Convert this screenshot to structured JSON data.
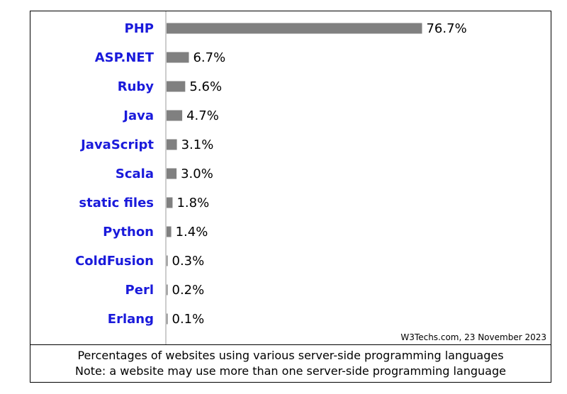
{
  "chart_data": {
    "type": "bar",
    "orientation": "horizontal",
    "title": "",
    "categories": [
      "PHP",
      "ASP.NET",
      "Ruby",
      "Java",
      "JavaScript",
      "Scala",
      "static files",
      "Python",
      "ColdFusion",
      "Perl",
      "Erlang"
    ],
    "values": [
      76.7,
      6.7,
      5.6,
      4.7,
      3.1,
      3.0,
      1.8,
      1.4,
      0.3,
      0.2,
      0.1
    ],
    "value_labels": [
      "76.7%",
      "6.7%",
      "5.6%",
      "4.7%",
      "3.1%",
      "3.0%",
      "1.8%",
      "1.4%",
      "0.3%",
      "0.2%",
      "0.1%"
    ],
    "xlim": [
      0,
      100
    ],
    "grid": false,
    "legend": "none",
    "bar_color": "#808080",
    "label_color": "#1a1adb"
  },
  "attribution": "W3Techs.com, 23 November 2023",
  "caption": {
    "line1": "Percentages of websites using various server-side programming languages",
    "line2": "Note: a website may use more than one server-side programming language"
  }
}
